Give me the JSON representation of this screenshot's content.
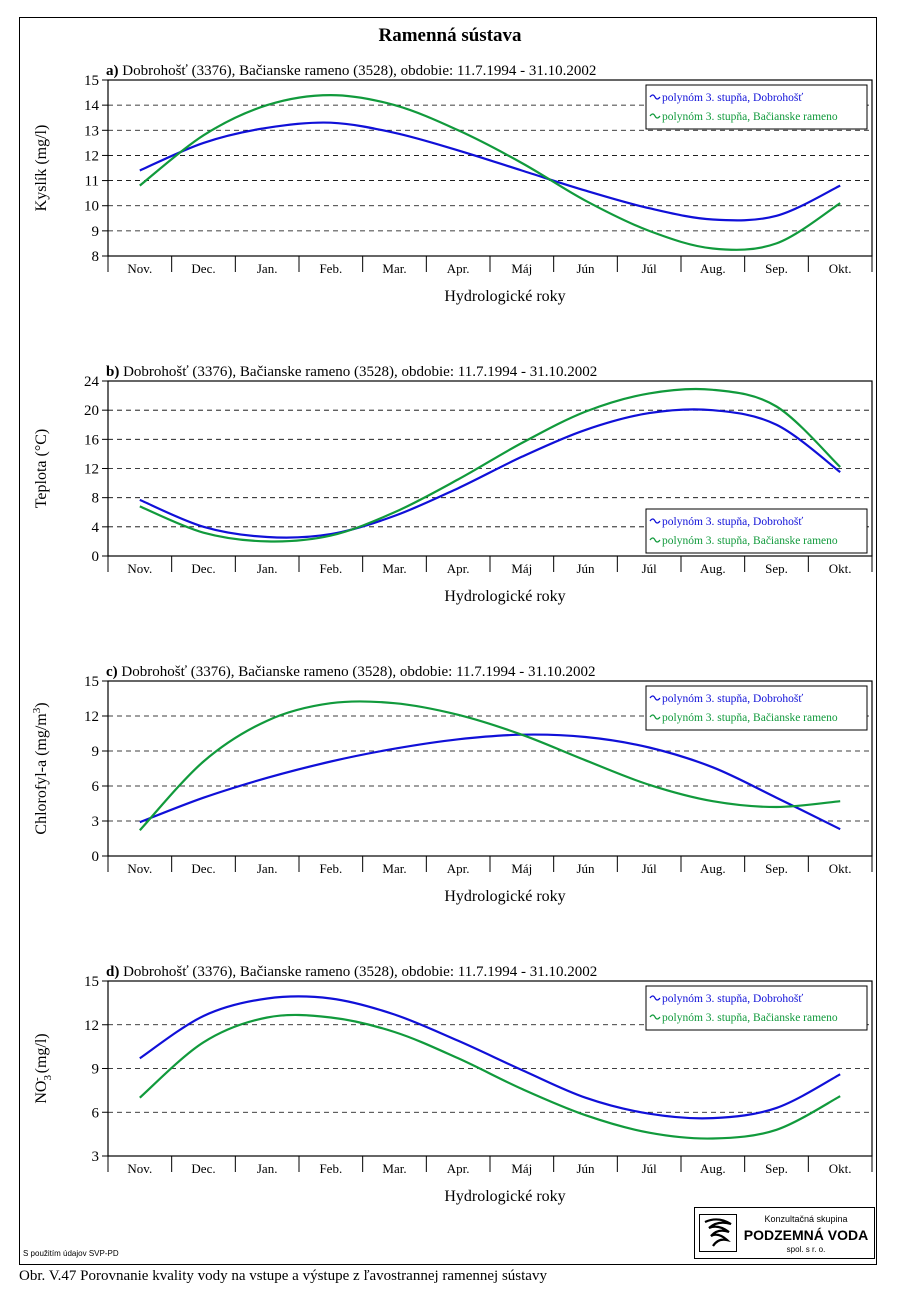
{
  "title": "Ramenná sústava",
  "caption": "Obr. V.47 Porovnanie kvality vody na vstupe a výstupe z ľavostrannej ramennej sústavy",
  "source_note": "S použitím údajov SVP-PD",
  "logo": {
    "line1": "Konzultačná skupina",
    "line2": "PODZEMNÁ VODA",
    "line3": "spol. s r. o."
  },
  "colors": {
    "Dobrohošť": "#1010d8",
    "Bačianske rameno": "#119a3c"
  },
  "chart_data": [
    {
      "panel": "a)",
      "type": "line",
      "title": "Dobrohošť (3376), Bačianske rameno (3528), obdobie: 11.7.1994 - 31.10.2002",
      "xlabel": "Hydrologické roky",
      "ylabel": "Kyslík  (mg/l)",
      "ylabel_sub": "",
      "ylabel_sup": "",
      "ylabel_rest": "",
      "categories": [
        "Nov.",
        "Dec.",
        "Jan.",
        "Feb.",
        "Mar.",
        "Apr.",
        "Máj",
        "Jún",
        "Júl",
        "Aug.",
        "Sep.",
        "Okt."
      ],
      "ylim": [
        8,
        15
      ],
      "yticks": [
        8,
        9,
        10,
        11,
        12,
        13,
        14,
        15
      ],
      "grid": "dashed-horizontal",
      "legend": "top-right",
      "series": [
        {
          "name": "polynóm 3. stupňa, Dobrohošť",
          "color": "#1010d8",
          "x": [
            0,
            1,
            2,
            3,
            4,
            5,
            6,
            7,
            8,
            9,
            10,
            11
          ],
          "values": [
            11.4,
            12.5,
            13.1,
            13.3,
            12.9,
            12.2,
            11.4,
            10.6,
            9.9,
            9.45,
            9.6,
            10.8
          ]
        },
        {
          "name": "polynóm 3. stupňa, Bačianske rameno",
          "color": "#119a3c",
          "x": [
            0,
            1,
            2,
            3,
            4,
            5,
            6,
            7,
            8,
            9,
            10,
            11
          ],
          "values": [
            10.8,
            12.8,
            14.0,
            14.4,
            14.0,
            13.0,
            11.7,
            10.2,
            9.0,
            8.3,
            8.5,
            10.1
          ]
        }
      ]
    },
    {
      "panel": "b)",
      "type": "line",
      "title": "Dobrohošť (3376), Bačianske rameno (3528), obdobie: 11.7.1994 - 31.10.2002",
      "xlabel": "Hydrologické roky",
      "ylabel": "Teplota  (°C)",
      "categories": [
        "Nov.",
        "Dec.",
        "Jan.",
        "Feb.",
        "Mar.",
        "Apr.",
        "Máj",
        "Jún",
        "Júl",
        "Aug.",
        "Sep.",
        "Okt."
      ],
      "ylim": [
        0,
        24
      ],
      "yticks": [
        0,
        4,
        8,
        12,
        16,
        20,
        24
      ],
      "grid": "dashed-horizontal",
      "legend": "bottom-right",
      "series": [
        {
          "name": "polynóm 3. stupňa, Dobrohošť",
          "color": "#1010d8",
          "x": [
            0,
            1,
            2,
            3,
            4,
            5,
            6,
            7,
            8,
            9,
            10,
            11
          ],
          "values": [
            7.7,
            4.0,
            2.6,
            3.0,
            5.5,
            9.3,
            13.6,
            17.3,
            19.6,
            20.0,
            18.0,
            11.5
          ]
        },
        {
          "name": "polynóm 3. stupňa, Bačianske rameno",
          "color": "#119a3c",
          "x": [
            0,
            1,
            2,
            3,
            4,
            5,
            6,
            7,
            8,
            9,
            10,
            11
          ],
          "values": [
            6.8,
            3.2,
            2.0,
            2.8,
            6.0,
            10.5,
            15.5,
            19.8,
            22.3,
            22.8,
            20.5,
            12.2
          ]
        }
      ]
    },
    {
      "panel": "c)",
      "type": "line",
      "title": "Dobrohošť (3376), Bačianske rameno (3528), obdobie: 11.7.1994 - 31.10.2002",
      "xlabel": "Hydrologické roky",
      "ylabel": "Chlorofyl-a  (mg/m",
      "ylabel_sup": "3",
      "ylabel_rest": ")",
      "categories": [
        "Nov.",
        "Dec.",
        "Jan.",
        "Feb.",
        "Mar.",
        "Apr.",
        "Máj",
        "Jún",
        "Júl",
        "Aug.",
        "Sep.",
        "Okt."
      ],
      "ylim": [
        0,
        15
      ],
      "yticks": [
        0,
        3,
        6,
        9,
        12,
        15
      ],
      "grid": "dashed-horizontal",
      "legend": "top-right",
      "series": [
        {
          "name": "polynóm 3. stupňa, Dobrohošť",
          "color": "#1010d8",
          "x": [
            0,
            1,
            2,
            3,
            4,
            5,
            6,
            7,
            8,
            9,
            10,
            11
          ],
          "values": [
            2.9,
            5.0,
            6.7,
            8.1,
            9.2,
            10.0,
            10.4,
            10.2,
            9.3,
            7.6,
            5.0,
            2.3
          ]
        },
        {
          "name": "polynóm 3. stupňa, Bačianske rameno",
          "color": "#119a3c",
          "x": [
            0,
            1,
            2,
            3,
            4,
            5,
            6,
            7,
            8,
            9,
            10,
            11
          ],
          "values": [
            2.2,
            8.1,
            11.6,
            13.1,
            13.1,
            12.1,
            10.4,
            8.2,
            6.1,
            4.7,
            4.2,
            4.7
          ]
        }
      ]
    },
    {
      "panel": "d)",
      "type": "line",
      "title": "Dobrohošť (3376), Bačianske rameno (3528), obdobie: 11.7.1994 - 31.10.2002",
      "xlabel": "Hydrologické roky",
      "ylabel": "NO",
      "ylabel_sub": "3",
      "ylabel_sup": "-",
      "ylabel_rest": "  (mg/l)",
      "categories": [
        "Nov.",
        "Dec.",
        "Jan.",
        "Feb.",
        "Mar.",
        "Apr.",
        "Máj",
        "Jún",
        "Júl",
        "Aug.",
        "Sep.",
        "Okt."
      ],
      "ylim": [
        3,
        15
      ],
      "yticks": [
        3,
        6,
        9,
        12,
        15
      ],
      "grid": "dashed-horizontal",
      "legend": "top-right",
      "series": [
        {
          "name": "polynóm 3. stupňa, Dobrohošť",
          "color": "#1010d8",
          "x": [
            0,
            1,
            2,
            3,
            4,
            5,
            6,
            7,
            8,
            9,
            10,
            11
          ],
          "values": [
            9.7,
            12.6,
            13.8,
            13.8,
            12.7,
            10.9,
            8.9,
            7.0,
            5.9,
            5.6,
            6.3,
            8.6
          ]
        },
        {
          "name": "polynóm 3. stupňa, Bačianske rameno",
          "color": "#119a3c",
          "x": [
            0,
            1,
            2,
            3,
            4,
            5,
            6,
            7,
            8,
            9,
            10,
            11
          ],
          "values": [
            7.0,
            10.8,
            12.5,
            12.5,
            11.5,
            9.7,
            7.6,
            5.8,
            4.6,
            4.2,
            4.8,
            7.1
          ]
        }
      ]
    }
  ]
}
